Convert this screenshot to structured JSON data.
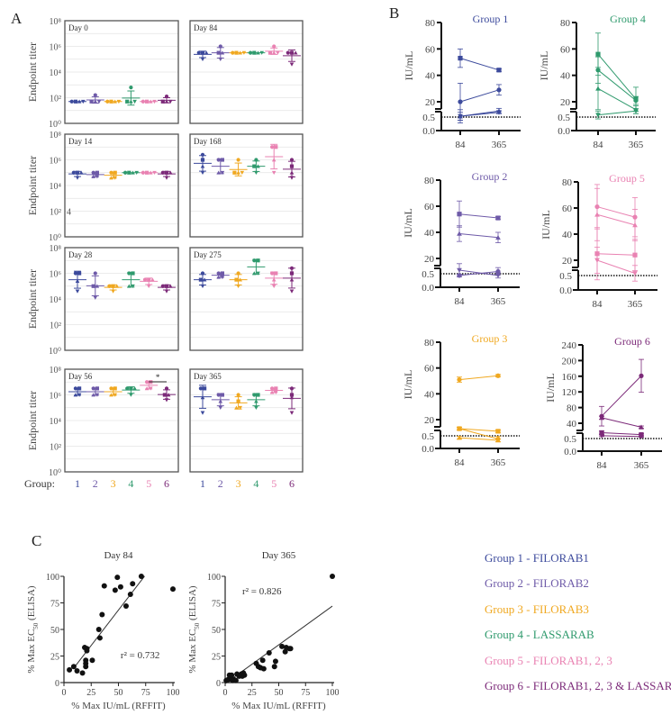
{
  "groups": [
    {
      "id": "1",
      "color": "#3c4a9c",
      "legend": "Group 1 - FILORAB1"
    },
    {
      "id": "2",
      "color": "#6e5aa8",
      "legend": "Group 2 - FILORAB2"
    },
    {
      "id": "3",
      "color": "#f0a820",
      "legend": "Group 3 - FILORAB3"
    },
    {
      "id": "4",
      "color": "#2f9a6d",
      "legend": "Group 4 - LASSARAB"
    },
    {
      "id": "5",
      "color": "#e982b2",
      "legend": "Group 5 - FILORAB1, 2, 3"
    },
    {
      "id": "6",
      "color": "#7c2a79",
      "legend": "Group 6 - FILORAB1, 2, 3 & LASSARAB"
    }
  ],
  "chart_data": {
    "panel_a": {
      "type": "scatter",
      "label": "A",
      "ylabel": "Endpoint titer",
      "yscale": "log10",
      "ylim_log10": [
        0,
        8
      ],
      "y_ticks": [
        "10⁰",
        "10²",
        "10⁴",
        "10⁶",
        "10⁸"
      ],
      "group_label": "Group:",
      "stray_text": "4",
      "significance": {
        "panel_index": 6,
        "groups": [
          5,
          6
        ],
        "label": "*"
      },
      "panels": [
        {
          "title": "Day 0",
          "values_log10": [
            [
              1.7,
              1.7,
              1.7,
              1.7
            ],
            [
              2.2,
              1.7,
              1.7,
              1.7
            ],
            [
              1.7,
              1.7,
              1.7,
              1.7
            ],
            [
              2.8,
              1.7,
              1.7,
              1.7
            ],
            [
              1.7,
              1.7,
              1.7,
              1.7
            ],
            [
              2.1,
              1.7,
              1.7,
              1.7
            ]
          ]
        },
        {
          "title": "Day 84",
          "values_log10": [
            [
              5.5,
              5.5,
              5.5,
              5.0
            ],
            [
              6.0,
              5.5,
              5.5,
              5.0
            ],
            [
              5.5,
              5.5,
              5.5,
              5.5
            ],
            [
              5.5,
              5.5,
              5.5,
              5.5
            ],
            [
              6.0,
              5.5,
              5.5,
              5.5
            ],
            [
              5.5,
              5.5,
              5.5,
              4.6
            ]
          ]
        },
        {
          "title": "Day 14",
          "values_log10": [
            [
              5.0,
              5.0,
              5.0,
              4.6
            ],
            [
              5.0,
              5.0,
              4.7,
              4.7
            ],
            [
              5.0,
              5.0,
              4.6,
              4.6
            ],
            [
              5.0,
              5.0,
              5.0,
              5.0
            ],
            [
              5.0,
              5.0,
              5.0,
              5.0
            ],
            [
              5.0,
              5.0,
              5.0,
              4.6
            ]
          ]
        },
        {
          "title": "Day 168",
          "values_log10": [
            [
              6.4,
              6.0,
              5.5,
              5.0
            ],
            [
              6.0,
              6.0,
              5.0,
              5.0
            ],
            [
              6.0,
              5.0,
              5.0,
              5.0
            ],
            [
              6.0,
              5.5,
              5.5,
              5.0
            ],
            [
              7.0,
              7.0,
              6.0,
              5.0
            ],
            [
              6.0,
              5.5,
              5.0,
              4.6
            ]
          ]
        },
        {
          "title": "Day 28",
          "values_log10": [
            [
              6.0,
              6.0,
              5.4,
              4.6
            ],
            [
              6.0,
              5.0,
              5.0,
              4.1
            ],
            [
              5.0,
              5.0,
              5.0,
              4.6
            ],
            [
              6.0,
              6.0,
              5.0,
              5.0
            ],
            [
              5.5,
              5.5,
              5.5,
              5.0
            ],
            [
              5.0,
              5.0,
              5.0,
              4.6
            ]
          ]
        },
        {
          "title": "Day 275",
          "values_log10": [
            [
              6.0,
              5.5,
              5.5,
              5.0
            ],
            [
              6.0,
              6.0,
              5.7,
              5.7
            ],
            [
              6.0,
              5.5,
              5.5,
              5.0
            ],
            [
              7.0,
              7.0,
              6.0,
              6.0
            ],
            [
              6.0,
              6.0,
              5.5,
              5.0
            ],
            [
              6.4,
              6.0,
              5.5,
              4.6
            ]
          ]
        },
        {
          "title": "Day 56",
          "values_log10": [
            [
              6.5,
              6.5,
              6.0,
              6.0
            ],
            [
              6.5,
              6.5,
              6.0,
              6.0
            ],
            [
              6.5,
              6.5,
              6.0,
              6.0
            ],
            [
              6.5,
              6.5,
              6.5,
              6.0
            ],
            [
              7.0,
              7.0,
              6.5,
              6.5
            ],
            [
              6.5,
              6.0,
              6.0,
              5.6
            ]
          ]
        },
        {
          "title": "Day 365",
          "values_log10": [
            [
              6.5,
              6.5,
              5.8,
              4.6
            ],
            [
              6.0,
              6.0,
              5.5,
              5.0
            ],
            [
              6.0,
              5.5,
              5.0,
              5.0
            ],
            [
              6.0,
              6.0,
              5.5,
              5.0
            ],
            [
              6.5,
              6.5,
              6.2,
              6.2
            ],
            [
              6.5,
              6.0,
              5.8,
              4.6
            ]
          ]
        }
      ]
    },
    "panel_b": {
      "type": "line",
      "label": "B",
      "ylabel": "IU/mL",
      "x_ticks": [
        "84",
        "365"
      ],
      "lower_ticks": [
        "0.5",
        "0.0"
      ],
      "plots": [
        {
          "title": "Group 1",
          "group": 0,
          "ymax": 80,
          "y_ticks": [
            80,
            60,
            40,
            20
          ],
          "series": [
            {
              "marker": "square",
              "v84": 53,
              "e84": 7,
              "v365": 44,
              "e365": 1
            },
            {
              "marker": "circle",
              "v84": 20,
              "e84": 14,
              "v365": 29,
              "e365": 4
            },
            {
              "marker": "triangle",
              "v84": 9,
              "e84": 5,
              "v365": 13,
              "e365": 2
            },
            {
              "marker": "inverted",
              "v84": 9,
              "e84": 3,
              "v365": 12,
              "e365": 1
            }
          ]
        },
        {
          "title": "Group 4",
          "group": 3,
          "ymax": 80,
          "y_ticks": [
            80,
            60,
            40,
            20
          ],
          "series": [
            {
              "marker": "square",
              "v84": 56,
              "e84": 16,
              "v365": 22,
              "e365": 9
            },
            {
              "marker": "circle",
              "v84": 44,
              "e84": 10,
              "v365": 21,
              "e365": 3
            },
            {
              "marker": "triangle",
              "v84": 30,
              "e84": 16,
              "v365": 14,
              "e365": 3
            },
            {
              "marker": "inverted",
              "v84": 10,
              "e84": 3,
              "v365": 13,
              "e365": 2
            }
          ]
        },
        {
          "title": "Group 2",
          "group": 1,
          "ymax": 80,
          "y_ticks": [
            80,
            60,
            40,
            20
          ],
          "series": [
            {
              "marker": "square",
              "v84": 54,
              "e84": 10,
              "v365": 51,
              "e365": 1
            },
            {
              "marker": "triangle",
              "v84": 39,
              "e84": 6,
              "v365": 36,
              "e365": 4
            },
            {
              "marker": "inverted",
              "v84": 11,
              "e84": 5,
              "v365": 7,
              "e365": 2
            },
            {
              "marker": "circle",
              "v84": 7,
              "e84": 1,
              "v365": 10,
              "e365": 3
            }
          ]
        },
        {
          "title": "Group 5",
          "group": 4,
          "ymax": 80,
          "y_ticks": [
            80,
            60,
            40,
            20
          ],
          "series": [
            {
              "marker": "circle",
              "v84": 61,
              "e84": 17,
              "v365": 53,
              "e365": 15
            },
            {
              "marker": "triangle",
              "v84": 55,
              "e84": 20,
              "v365": 47,
              "e365": 12
            },
            {
              "marker": "square",
              "v84": 25,
              "e84": 20,
              "v365": 24,
              "e365": 12
            },
            {
              "marker": "inverted",
              "v84": 20,
              "e84": 10,
              "v365": 10,
              "e365": 6
            }
          ]
        },
        {
          "title": "Group 3",
          "group": 2,
          "ymax": 80,
          "y_ticks": [
            80,
            60,
            40,
            20
          ],
          "series": [
            {
              "marker": "circle",
              "v84": 51,
              "e84": 2,
              "v365": 54,
              "e365": 1
            },
            {
              "marker": "square",
              "v84": 13,
              "e84": 1,
              "v365": 11,
              "e365": 1
            },
            {
              "marker": "circle",
              "v84": 13,
              "e84": 1,
              "v365": 5,
              "e365": 2
            },
            {
              "marker": "triangle",
              "v84": 6,
              "e84": 1,
              "v365": 4,
              "e365": 1
            }
          ]
        },
        {
          "title": "Group 6",
          "group": 5,
          "ymax": 240,
          "y_ticks": [
            240,
            200,
            160,
            120,
            80,
            40
          ],
          "series": [
            {
              "marker": "circle",
              "v84": 58,
              "e84": 25,
              "v365": 161,
              "e365": 42
            },
            {
              "marker": "triangle",
              "v84": 54,
              "e84": 4,
              "v365": 30,
              "e365": 3
            },
            {
              "marker": "square",
              "v84": 16,
              "e84": 4,
              "v365": 11,
              "e365": 3
            },
            {
              "marker": "inverted",
              "v84": 8,
              "e84": 2,
              "v365": 6,
              "e365": 2
            }
          ]
        }
      ]
    },
    "panel_c": [
      {
        "type": "scatter",
        "title": "Day 84",
        "xlabel": "% Max IU/mL (RFFIT)",
        "ylabel": "% Max EC",
        "ylabel_sub": "50",
        "ylabel_suffix": " (ELISA)",
        "x_ticks": [
          "0",
          "25",
          "50",
          "75",
          "100"
        ],
        "y_ticks": [
          "0",
          "25",
          "50",
          "75",
          "100"
        ],
        "xlim": [
          0,
          100
        ],
        "ylim": [
          0,
          100
        ],
        "annotation": "r² = 0.732",
        "fit": {
          "slope": 1.33,
          "intercept": 1.7,
          "x_range": [
            10,
            74
          ]
        },
        "points": [
          [
            5,
            12
          ],
          [
            9,
            15
          ],
          [
            12,
            11
          ],
          [
            17,
            9
          ],
          [
            19,
            33
          ],
          [
            20,
            21
          ],
          [
            20,
            18
          ],
          [
            20,
            15
          ],
          [
            21,
            30
          ],
          [
            21,
            32
          ],
          [
            26,
            21
          ],
          [
            32,
            50
          ],
          [
            33,
            42
          ],
          [
            35,
            64
          ],
          [
            37,
            91
          ],
          [
            47,
            87
          ],
          [
            49,
            99
          ],
          [
            52,
            90
          ],
          [
            57,
            72
          ],
          [
            61,
            83
          ],
          [
            63,
            93
          ],
          [
            71,
            100
          ],
          [
            100,
            88
          ]
        ]
      },
      {
        "type": "scatter",
        "title": "Day 365",
        "xlabel": "% Max IU/mL (RFFIT)",
        "ylabel": "% Max EC",
        "ylabel_sub": "50",
        "ylabel_suffix": " (ELISA)",
        "x_ticks": [
          "0",
          "25",
          "50",
          "75",
          "100"
        ],
        "y_ticks": [
          "0",
          "25",
          "50",
          "75",
          "100"
        ],
        "xlim": [
          0,
          100
        ],
        "ylim": [
          0,
          100
        ],
        "annotation": "r² = 0.826",
        "fit": {
          "slope": 0.73,
          "intercept": -1,
          "x_range": [
            0,
            100
          ]
        },
        "points": [
          [
            1,
            2
          ],
          [
            3,
            3
          ],
          [
            4,
            7
          ],
          [
            5,
            5
          ],
          [
            6,
            7
          ],
          [
            7,
            2
          ],
          [
            8,
            3
          ],
          [
            10,
            2
          ],
          [
            11,
            8
          ],
          [
            13,
            6
          ],
          [
            15,
            8
          ],
          [
            16,
            6
          ],
          [
            17,
            9
          ],
          [
            18,
            7
          ],
          [
            29,
            18
          ],
          [
            31,
            15
          ],
          [
            33,
            14
          ],
          [
            35,
            21
          ],
          [
            36,
            13
          ],
          [
            41,
            28
          ],
          [
            46,
            15
          ],
          [
            47,
            20
          ],
          [
            53,
            34
          ],
          [
            56,
            29
          ],
          [
            57,
            33
          ],
          [
            60,
            32
          ],
          [
            61,
            32
          ],
          [
            100,
            100
          ]
        ]
      }
    ],
    "panel_c_label": "C"
  }
}
